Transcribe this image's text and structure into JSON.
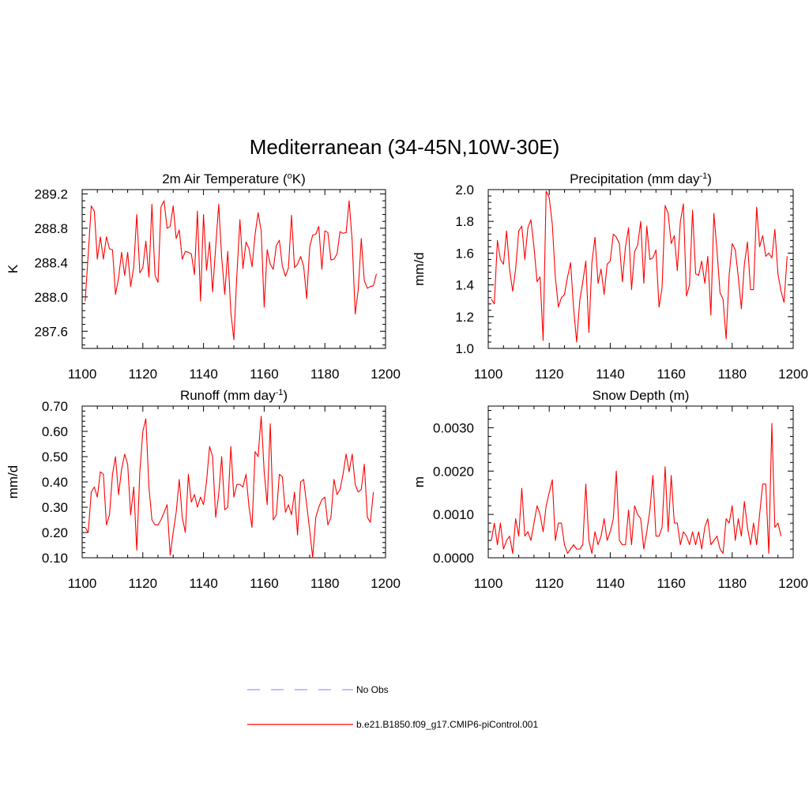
{
  "figure_title": "Mediterranean (34-45N,10W-30E)",
  "colors": {
    "model_line": "#ff0000",
    "obs_line": "#9999ff",
    "axis": "#000000"
  },
  "legend": {
    "items": [
      {
        "label": "No Obs",
        "style": "dashed",
        "color": "#9999ff"
      },
      {
        "label": "b.e21.B1850.f09_g17.CMIP6-piControl.001",
        "style": "solid",
        "color": "#ff0000"
      }
    ]
  },
  "chart_data": [
    {
      "type": "line",
      "title": "2m Air Temperature",
      "title_unit_html": "(<tspan baseline-shift=\"super\" font-size=\"11\">o</tspan>K)",
      "ylabel": "K",
      "xlim": [
        1100,
        1200
      ],
      "ylim": [
        287.4,
        289.25
      ],
      "x_ticks": [
        "1100",
        "1120",
        "1140",
        "1160",
        "1180",
        "1200"
      ],
      "y_ticks": [
        "287.6",
        "288.0",
        "288.4",
        "288.8",
        "289.2"
      ],
      "x_start": 1101,
      "series": [
        {
          "values": [
            287.95,
            288.5,
            289.06,
            289.0,
            288.44,
            288.7,
            288.44,
            288.7,
            288.56,
            288.55,
            288.03,
            288.22,
            288.52,
            288.25,
            288.52,
            288.12,
            288.35,
            288.96,
            288.28,
            288.34,
            288.65,
            288.23,
            289.08,
            288.25,
            288.17,
            289.05,
            289.12,
            288.8,
            288.82,
            289.06,
            288.68,
            288.78,
            288.44,
            288.53,
            288.52,
            288.5,
            288.26,
            289.0,
            287.95,
            288.96,
            288.31,
            288.64,
            288.06,
            288.58,
            289.08,
            288.46,
            288.03,
            288.53,
            287.82,
            287.5,
            288.25,
            288.9,
            288.33,
            288.64,
            288.56,
            288.35,
            288.73,
            288.98,
            288.77,
            287.88,
            288.55,
            288.38,
            288.32,
            288.6,
            288.66,
            288.36,
            288.24,
            288.34,
            288.95,
            288.34,
            288.38,
            288.47,
            288.36,
            287.98,
            288.58,
            288.72,
            288.73,
            288.82,
            288.32,
            288.77,
            288.75,
            288.43,
            288.44,
            288.5,
            288.76,
            288.74,
            288.75,
            289.12,
            288.65,
            287.8,
            288.08,
            288.68,
            288.19,
            288.1,
            288.12,
            288.13,
            288.27
          ]
        }
      ]
    },
    {
      "type": "line",
      "title": "Precipitation",
      "title_unit_html": "(mm day<tspan baseline-shift=\"super\" font-size=\"11\">-1</tspan>)",
      "ylabel": "mm/d",
      "xlim": [
        1100,
        1200
      ],
      "ylim": [
        1.0,
        2.0
      ],
      "x_ticks": [
        "1100",
        "1120",
        "1140",
        "1160",
        "1180",
        "1200"
      ],
      "y_ticks": [
        "1.0",
        "1.2",
        "1.4",
        "1.6",
        "1.8",
        "2.0"
      ],
      "x_start": 1101,
      "series": [
        {
          "values": [
            1.31,
            1.28,
            1.68,
            1.56,
            1.53,
            1.74,
            1.5,
            1.36,
            1.5,
            1.74,
            1.77,
            1.56,
            1.76,
            1.81,
            1.64,
            1.42,
            1.45,
            1.05,
            1.99,
            1.95,
            1.78,
            1.45,
            1.26,
            1.32,
            1.34,
            1.45,
            1.54,
            1.25,
            1.04,
            1.3,
            1.42,
            1.55,
            1.1,
            1.54,
            1.7,
            1.41,
            1.5,
            1.34,
            1.53,
            1.55,
            1.72,
            1.7,
            1.66,
            1.42,
            1.64,
            1.76,
            1.37,
            1.61,
            1.65,
            1.8,
            1.41,
            1.77,
            1.56,
            1.57,
            1.62,
            1.26,
            1.38,
            1.9,
            1.85,
            1.66,
            1.71,
            1.49,
            1.8,
            1.91,
            1.33,
            1.4,
            1.87,
            1.47,
            1.46,
            1.55,
            1.41,
            1.58,
            1.21,
            1.85,
            1.62,
            1.35,
            1.31,
            1.06,
            1.46,
            1.66,
            1.62,
            1.45,
            1.25,
            1.53,
            1.67,
            1.37,
            1.37,
            1.89,
            1.64,
            1.71,
            1.58,
            1.6,
            1.57,
            1.75,
            1.47,
            1.36,
            1.29,
            1.58
          ]
        }
      ]
    },
    {
      "type": "line",
      "title": "Runoff",
      "title_unit_html": "(mm day<tspan baseline-shift=\"super\" font-size=\"11\">-1</tspan>)",
      "ylabel": "mm/d",
      "xlim": [
        1100,
        1200
      ],
      "ylim": [
        0.1,
        0.7
      ],
      "x_ticks": [
        "1100",
        "1120",
        "1140",
        "1160",
        "1180",
        "1200"
      ],
      "y_ticks": [
        "0.10",
        "0.20",
        "0.30",
        "0.40",
        "0.50",
        "0.60",
        "0.70"
      ],
      "x_start": 1101,
      "series": [
        {
          "values": [
            0.22,
            0.2,
            0.36,
            0.38,
            0.34,
            0.44,
            0.43,
            0.23,
            0.27,
            0.43,
            0.5,
            0.35,
            0.45,
            0.51,
            0.47,
            0.27,
            0.38,
            0.13,
            0.44,
            0.6,
            0.65,
            0.38,
            0.25,
            0.23,
            0.23,
            0.25,
            0.28,
            0.31,
            0.11,
            0.2,
            0.28,
            0.41,
            0.26,
            0.2,
            0.43,
            0.32,
            0.35,
            0.3,
            0.34,
            0.31,
            0.4,
            0.54,
            0.5,
            0.26,
            0.35,
            0.5,
            0.29,
            0.3,
            0.54,
            0.34,
            0.39,
            0.39,
            0.38,
            0.43,
            0.3,
            0.22,
            0.52,
            0.5,
            0.66,
            0.44,
            0.31,
            0.63,
            0.25,
            0.27,
            0.43,
            0.42,
            0.28,
            0.31,
            0.27,
            0.36,
            0.19,
            0.4,
            0.41,
            0.31,
            0.21,
            0.1,
            0.26,
            0.3,
            0.33,
            0.34,
            0.23,
            0.26,
            0.41,
            0.35,
            0.37,
            0.43,
            0.51,
            0.44,
            0.51,
            0.39,
            0.36,
            0.37,
            0.47,
            0.26,
            0.24,
            0.36
          ]
        }
      ]
    },
    {
      "type": "line",
      "title": "Snow Depth (m)",
      "title_unit_html": "",
      "ylabel": "m",
      "xlim": [
        1100,
        1200
      ],
      "ylim": [
        0.0,
        0.0035
      ],
      "x_ticks": [
        "1100",
        "1120",
        "1140",
        "1160",
        "1180",
        "1200"
      ],
      "y_ticks": [
        "0.0000",
        "0.0010",
        "0.0020",
        "0.0030"
      ],
      "x_start": 1101,
      "series": [
        {
          "values": [
            0.0004,
            0.0008,
            0.0003,
            0.0008,
            0.0002,
            0.0004,
            0.0005,
            0.0001,
            0.0009,
            0.0005,
            0.0016,
            0.0005,
            0.0006,
            0.0004,
            0.0008,
            0.0012,
            0.001,
            0.0006,
            0.0012,
            0.0015,
            0.0018,
            0.0004,
            0.0008,
            0.0008,
            0.0003,
            0.0001,
            0.0002,
            0.0003,
            0.0002,
            0.0002,
            0.0003,
            0.0017,
            0.0004,
            0.0001,
            0.0006,
            0.0003,
            0.0005,
            0.0009,
            0.0004,
            0.0006,
            0.0009,
            0.002,
            0.0004,
            0.0003,
            0.0003,
            0.0011,
            0.0003,
            0.0012,
            0.001,
            0.0009,
            0.0002,
            0.0006,
            0.0011,
            0.0019,
            0.0005,
            0.0005,
            0.0007,
            0.0021,
            0.0006,
            0.0019,
            0.0008,
            0.0008,
            0.0003,
            0.0006,
            0.0005,
            0.0003,
            0.0006,
            0.0003,
            0.0006,
            0.0002,
            0.0007,
            0.0009,
            0.0003,
            0.0004,
            0.0005,
            0.0002,
            0.0001,
            0.0009,
            0.0008,
            0.0012,
            0.0004,
            0.0009,
            0.0005,
            0.0013,
            0.0007,
            0.0003,
            0.0008,
            0.0003,
            0.001,
            0.0017,
            0.0017,
            0.0001,
            0.0031,
            0.0007,
            0.0008,
            0.0005
          ]
        }
      ]
    }
  ]
}
